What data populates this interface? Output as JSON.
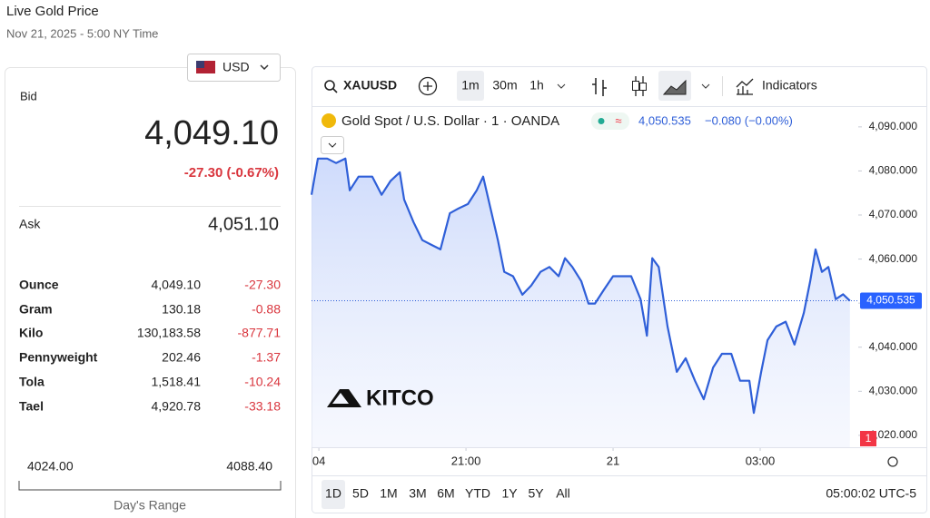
{
  "header": {
    "title": "Live Gold Price",
    "date": "Nov 21, 2025 - 5:00 NY Time"
  },
  "quote": {
    "currency": "USD",
    "bid_label": "Bid",
    "bid": "4,049.10",
    "change": "-27.30 (-0.67%)",
    "ask_label": "Ask",
    "ask": "4,051.10"
  },
  "table": {
    "rows": [
      [
        "Ounce",
        "4,049.10",
        "-27.30"
      ],
      [
        "Gram",
        "130.18",
        "-0.88"
      ],
      [
        "Kilo",
        "130,183.58",
        "-877.71"
      ],
      [
        "Pennyweight",
        "202.46",
        "-1.37"
      ],
      [
        "Tola",
        "1,518.41",
        "-10.24"
      ],
      [
        "Tael",
        "4,920.78",
        "-33.18"
      ]
    ]
  },
  "day_range": {
    "low": "4024.00",
    "high": "4088.40",
    "label": "Day's Range"
  },
  "toolbar": {
    "symbol": "XAUUSD",
    "intervals": [
      "1m",
      "30m",
      "1h"
    ],
    "indicators": "Indicators"
  },
  "legend": {
    "price": "4,050.535",
    "change": "−0.080 (−0.00%)"
  },
  "logo": "KITCO",
  "ranges": [
    "1D",
    "5D",
    "1M",
    "3M",
    "6M",
    "YTD",
    "1Y",
    "5Y",
    "All"
  ],
  "clock": "05:00:02 UTC-5",
  "alert_count": "1",
  "chart_data": {
    "type": "line",
    "x": [
      -0.15,
      -0.02,
      0.17,
      0.35,
      0.54,
      0.63,
      0.81,
      1.09,
      1.28,
      1.46,
      1.65,
      1.74,
      1.93,
      2.11,
      2.3,
      2.48,
      2.67,
      2.85,
      3.04,
      3.22,
      3.35,
      3.5,
      3.65,
      3.78,
      3.96,
      4.15,
      4.33,
      4.52,
      4.7,
      4.89,
      5.02,
      5.17,
      5.35,
      5.5,
      5.63,
      5.81,
      6.0,
      6.19,
      6.37,
      6.56,
      6.69,
      6.8,
      6.93,
      7.11,
      7.3,
      7.48,
      7.67,
      7.85,
      8.04,
      8.22,
      8.41,
      8.59,
      8.78,
      8.87,
      9.02,
      9.15,
      9.33,
      9.52,
      9.7,
      9.89,
      10.02,
      10.13,
      10.26,
      10.39,
      10.54,
      10.69,
      10.83
    ],
    "series": [
      {
        "name": "Gold Spot / U.S. Dollar · 1 · OANDA",
        "color": "#2f5fd8",
        "values": [
          4074.6,
          4082.8,
          4082.8,
          4081.8,
          4082.8,
          4075.6,
          4078.7,
          4078.7,
          4074.6,
          4077.7,
          4079.7,
          4073.5,
          4068.4,
          4064.3,
          4063.2,
          4062.2,
          4070.4,
          4071.5,
          4072.5,
          4075.6,
          4078.7,
          4071.5,
          4064.3,
          4057.1,
          4056.1,
          4051.9,
          4054.0,
          4057.1,
          4058.2,
          4056.1,
          4060.2,
          4058.2,
          4055.0,
          4049.9,
          4049.9,
          4053.0,
          4056.1,
          4056.1,
          4056.1,
          4050.9,
          4042.6,
          4060.2,
          4058.2,
          4044.7,
          4034.4,
          4037.5,
          4032.4,
          4028.2,
          4035.4,
          4038.5,
          4038.5,
          4032.4,
          4032.4,
          4025.1,
          4034.4,
          4041.6,
          4044.7,
          4045.8,
          4040.6,
          4047.8,
          4055.0,
          4062.2,
          4057.1,
          4058.2,
          4050.9,
          4052.0,
          4050.535
        ]
      }
    ],
    "last_price": {
      "value": 4050.535,
      "label": "4,050.535"
    },
    "xlim": [
      -0.15,
      11.0
    ],
    "ylim": [
      4017.3,
      4094.5
    ],
    "xticks": [
      {
        "value": 0,
        "label": "04"
      },
      {
        "value": 3,
        "label": "21:00"
      },
      {
        "value": 6,
        "label": "21"
      },
      {
        "value": 9,
        "label": "03:00"
      }
    ],
    "yticks": [
      {
        "value": 4020,
        "label": "4,020.000"
      },
      {
        "value": 4030,
        "label": "4,030.000"
      },
      {
        "value": 4040,
        "label": "4,040.000"
      },
      {
        "value": 4050,
        "label": "4,050.000"
      },
      {
        "value": 4060,
        "label": "4,060.000"
      },
      {
        "value": 4070,
        "label": "4,070.000"
      },
      {
        "value": 4080,
        "label": "4,080.000"
      },
      {
        "value": 4090,
        "label": "4,090.000"
      }
    ],
    "grid": false
  }
}
